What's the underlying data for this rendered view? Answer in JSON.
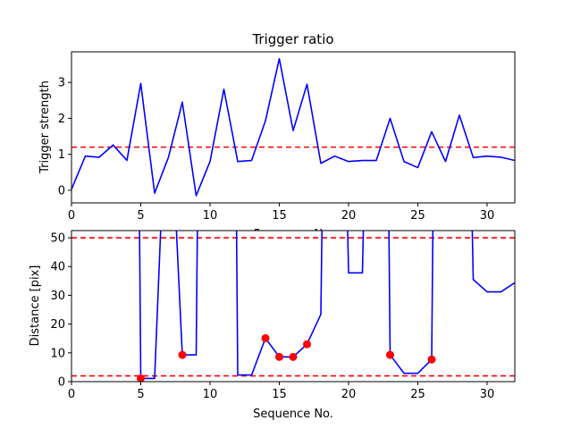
{
  "chart_data": [
    {
      "type": "line",
      "title": "Trigger ratio",
      "xlabel": "Sequence No.",
      "ylabel": "Trigger strength",
      "xlim": [
        0,
        32
      ],
      "ylim": [
        -0.35,
        3.85
      ],
      "xticks": [
        0,
        5,
        10,
        15,
        20,
        25,
        30
      ],
      "yticks": [
        0,
        1,
        2,
        3
      ],
      "grid": false,
      "series": [
        {
          "color": "#0000ff",
          "x": [
            0,
            1,
            2,
            3,
            4,
            5,
            6,
            7,
            8,
            9,
            10,
            11,
            12,
            13,
            14,
            15,
            16,
            17,
            18,
            19,
            20,
            21,
            22,
            23,
            24,
            25,
            26,
            27,
            28,
            29,
            30,
            31,
            32
          ],
          "values": [
            0.03,
            0.95,
            0.92,
            1.26,
            0.83,
            2.97,
            -0.08,
            0.92,
            2.45,
            -0.15,
            0.8,
            2.81,
            0.8,
            0.83,
            1.93,
            3.66,
            1.66,
            2.95,
            0.75,
            0.95,
            0.8,
            0.83,
            0.83,
            2.0,
            0.8,
            0.63,
            1.63,
            0.8,
            2.09,
            0.91,
            0.95,
            0.92,
            0.83
          ]
        }
      ],
      "reference_lines": [
        {
          "y": 1.2,
          "color": "#ff0000",
          "style": "dashed"
        }
      ]
    },
    {
      "type": "line",
      "title": "",
      "xlabel": "Sequence No.",
      "ylabel": "Distance [pix]",
      "xlim": [
        0,
        32
      ],
      "ylim": [
        0,
        52.5
      ],
      "xticks": [
        0,
        5,
        10,
        15,
        20,
        25,
        30
      ],
      "yticks": [
        0,
        10,
        20,
        30,
        40,
        50
      ],
      "grid": false,
      "series": [
        {
          "color": "#0000ff",
          "x": [
            4.9,
            5,
            6,
            6.5,
            7.5,
            8,
            9,
            9.1,
            11.9,
            12,
            13,
            14,
            15,
            16,
            17,
            18,
            18.1,
            19.9,
            20,
            21,
            21.1,
            22.9,
            23,
            24,
            25,
            26,
            26.1,
            28.9,
            29,
            30,
            31,
            32
          ],
          "values": [
            60,
            1.1,
            1.1,
            60,
            60,
            9.3,
            9.3,
            60,
            60,
            2.3,
            2.3,
            15.1,
            8.6,
            8.6,
            13.0,
            23.4,
            60,
            60,
            37.8,
            37.8,
            60,
            60,
            9.3,
            2.9,
            2.9,
            7.7,
            60,
            60,
            35.5,
            31.2,
            31.2,
            34.4
          ]
        },
        {
          "color": "#ff0000",
          "marker": "circle",
          "x": [
            5,
            8,
            14,
            15,
            16,
            17,
            23,
            26
          ],
          "values": [
            1.1,
            9.3,
            15.1,
            8.6,
            8.6,
            13.0,
            9.3,
            7.7
          ]
        }
      ],
      "reference_lines": [
        {
          "y": 50,
          "color": "#ff0000",
          "style": "dashed"
        },
        {
          "y": 2,
          "color": "#ff0000",
          "style": "dashed"
        }
      ]
    }
  ]
}
